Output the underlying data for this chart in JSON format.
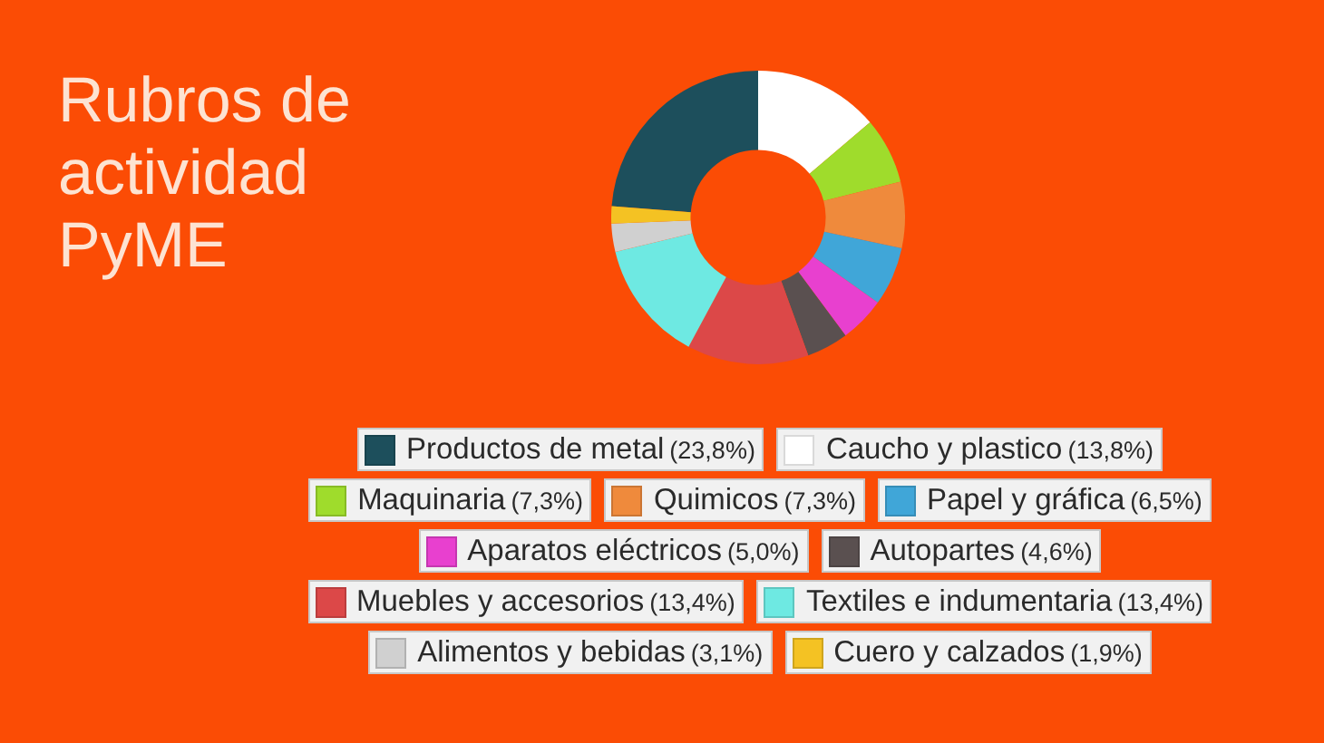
{
  "chart_data": {
    "type": "donut",
    "title": "Rubros de actividad PyME",
    "categories": [
      "Productos de metal",
      "Caucho y plastico",
      "Maquinaria",
      "Quimicos",
      "Papel y gráfica",
      "Aparatos eléctricos",
      "Autopartes",
      "Muebles y accesorios",
      "Textiles e indumentaria",
      "Alimentos y bebidas",
      "Cuero y calzados"
    ],
    "values": [
      23.8,
      13.8,
      7.3,
      7.3,
      6.5,
      5.0,
      4.6,
      13.4,
      13.4,
      3.1,
      1.9
    ],
    "colors": [
      "#1d4f5c",
      "#ffffff",
      "#9fdc2c",
      "#ef8a3c",
      "#40a6d8",
      "#e840cf",
      "#5a5050",
      "#dc4848",
      "#6ee9e2",
      "#d0d0d0",
      "#f4c223"
    ],
    "value_labels": [
      "(23,8%)",
      "(13,8%)",
      "(7,3%)",
      "(7,3%)",
      "(6,5%)",
      "(5,0%)",
      "(4,6%)",
      "(13,4%)",
      "(13,4%)",
      "(3,1%)",
      "(1,9%)"
    ],
    "legend": "bottom"
  }
}
